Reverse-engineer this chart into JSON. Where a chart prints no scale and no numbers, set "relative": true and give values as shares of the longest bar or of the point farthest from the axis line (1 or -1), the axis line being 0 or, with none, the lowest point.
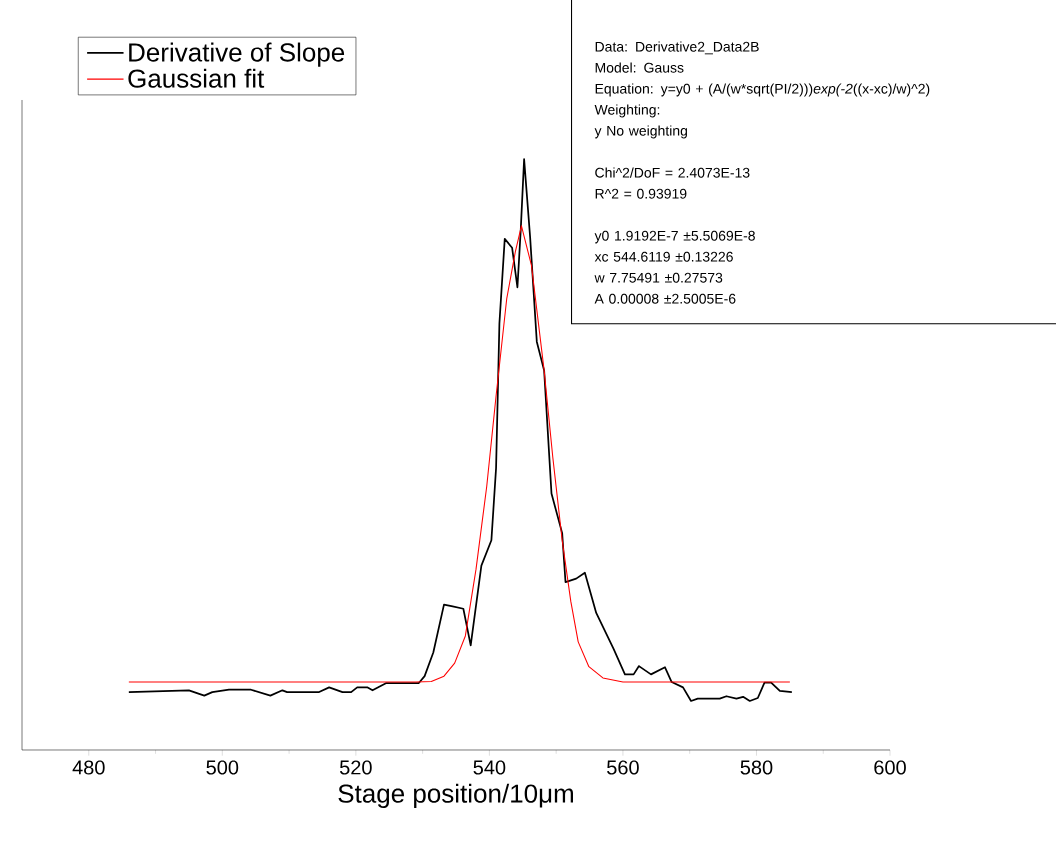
{
  "chart_data": {
    "type": "line",
    "relative": true,
    "xlabel": "Stage position/10μm",
    "xlim": [
      470,
      600
    ],
    "xticks": [
      480,
      500,
      520,
      540,
      560,
      580,
      600
    ],
    "legend": "top left",
    "marker": "none",
    "line_style": "solid",
    "series": [
      {
        "name": "Derivative of Slope",
        "color": "#000000",
        "x": [
          486,
          495,
          497.3,
          498.5,
          501,
          504.3,
          507.2,
          509,
          509.7,
          514.5,
          516,
          518,
          519.3,
          520.2,
          521.7,
          522.5,
          524.5,
          529.4,
          530.3,
          531.6,
          533.2,
          534.5,
          536.1,
          537.2,
          538.8,
          540.3,
          541.0,
          541.5,
          542.3,
          543.4,
          544.2,
          544.7,
          545.2,
          546.1,
          547.1,
          548.2,
          549.3,
          550.9,
          551.4,
          553.0,
          554.3,
          556.0,
          558.6,
          560.3,
          561.6,
          562.4,
          564.2,
          566.3,
          567.3,
          569.0,
          570.2,
          571.2,
          574.5,
          575.5,
          577.0,
          578.0,
          579.0,
          580.2,
          581.2,
          582.2,
          583.5,
          585.3
        ],
        "values": [
          0.098,
          0.101,
          0.092,
          0.098,
          0.102,
          0.102,
          0.092,
          0.101,
          0.098,
          0.098,
          0.106,
          0.098,
          0.098,
          0.106,
          0.106,
          0.101,
          0.113,
          0.113,
          0.125,
          0.165,
          0.246,
          0.243,
          0.239,
          0.177,
          0.312,
          0.355,
          0.477,
          0.722,
          0.865,
          0.85,
          0.783,
          0.881,
          1.0,
          0.868,
          0.691,
          0.642,
          0.434,
          0.367,
          0.284,
          0.29,
          0.3,
          0.232,
          0.171,
          0.128,
          0.128,
          0.142,
          0.128,
          0.14,
          0.115,
          0.106,
          0.083,
          0.087,
          0.087,
          0.091,
          0.087,
          0.09,
          0.083,
          0.088,
          0.114,
          0.114,
          0.1,
          0.098
        ]
      },
      {
        "name": "Gaussian fit",
        "color": "#ff0000",
        "x": [
          486,
          500,
          515,
          529,
          531.3,
          533.2,
          534.8,
          536.4,
          538.0,
          539.6,
          541.0,
          542.6,
          543.9,
          544.8,
          546.3,
          548.2,
          549.5,
          550.9,
          552.2,
          553.3,
          554.9,
          557.0,
          560,
          570,
          585
        ],
        "values": [
          0.115,
          0.115,
          0.115,
          0.115,
          0.116,
          0.125,
          0.147,
          0.193,
          0.306,
          0.446,
          0.599,
          0.764,
          0.844,
          0.887,
          0.82,
          0.642,
          0.495,
          0.355,
          0.251,
          0.183,
          0.141,
          0.122,
          0.115,
          0.115,
          0.115
        ]
      }
    ],
    "annotations": [
      "Data: Derivative2_Data2B",
      "Model: Gauss",
      "Equation: y=y0 + (A/(w*sqrt(PI/2)))*exp(-2*((x-xc)/w)^2)",
      "Weighting:",
      "y        No weighting",
      "Chi^2/DoF        = 2.4073E-13",
      "R^2    =  0.93919",
      "y0       1.9192E-7        ±5.5069E-8",
      "xc       544.6119         ±0.13226",
      "w        7.75491          ±0.27573",
      "A        0.00008          ±2.5005E-6"
    ]
  }
}
